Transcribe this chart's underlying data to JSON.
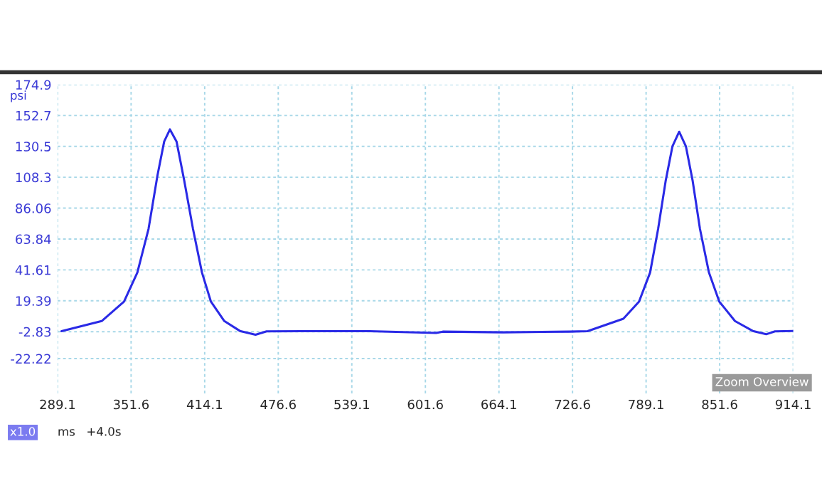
{
  "chart_data": {
    "type": "line",
    "xlabel": "ms",
    "ylabel": "psi",
    "annotations": [
      "x1.0",
      "+4.0s",
      "Zoom Overview"
    ],
    "x": [
      292.5,
      326.6,
      345.6,
      356.9,
      366.4,
      374.0,
      379.7,
      384.6,
      390.2,
      396.7,
      404.2,
      411.8,
      419.4,
      430.8,
      444.0,
      457.3,
      466.7,
      497.1,
      553.9,
      610.7,
      616.4,
      667.5,
      724.3,
      739.4,
      769.8,
      783.1,
      792.5,
      799.3,
      805.8,
      811.5,
      817.2,
      822.9,
      828.6,
      834.9,
      842.5,
      851.3,
      864.6,
      879.7,
      891.1,
      898.6,
      914.0
    ],
    "series": [
      {
        "color": "#2a2ae6",
        "values": [
          -2.5,
          4.8,
          18.8,
          39.7,
          71.1,
          109.6,
          134.0,
          142.7,
          134.0,
          106.0,
          71.0,
          39.7,
          18.8,
          4.8,
          -2.3,
          -5.0,
          -2.6,
          -2.5,
          -2.5,
          -3.8,
          -2.8,
          -3.3,
          -2.8,
          -2.5,
          6.5,
          18.8,
          39.7,
          71.0,
          106.0,
          130.6,
          141.0,
          130.6,
          106.0,
          71.0,
          39.7,
          18.8,
          4.8,
          -2.3,
          -4.7,
          -2.6,
          -2.3
        ]
      }
    ],
    "xlim": [
      289.1,
      914.1
    ],
    "xticks": [
      289.1,
      351.6,
      414.1,
      476.6,
      539.1,
      601.6,
      664.1,
      726.6,
      789.1,
      851.6,
      914.1
    ],
    "ylim": [
      -47.27,
      174.9
    ],
    "yticks": [
      174.9,
      152.7,
      130.5,
      108.3,
      86.06,
      63.84,
      41.61,
      19.39,
      -2.83,
      -22.22
    ],
    "grid": true,
    "line_style": "solid"
  }
}
